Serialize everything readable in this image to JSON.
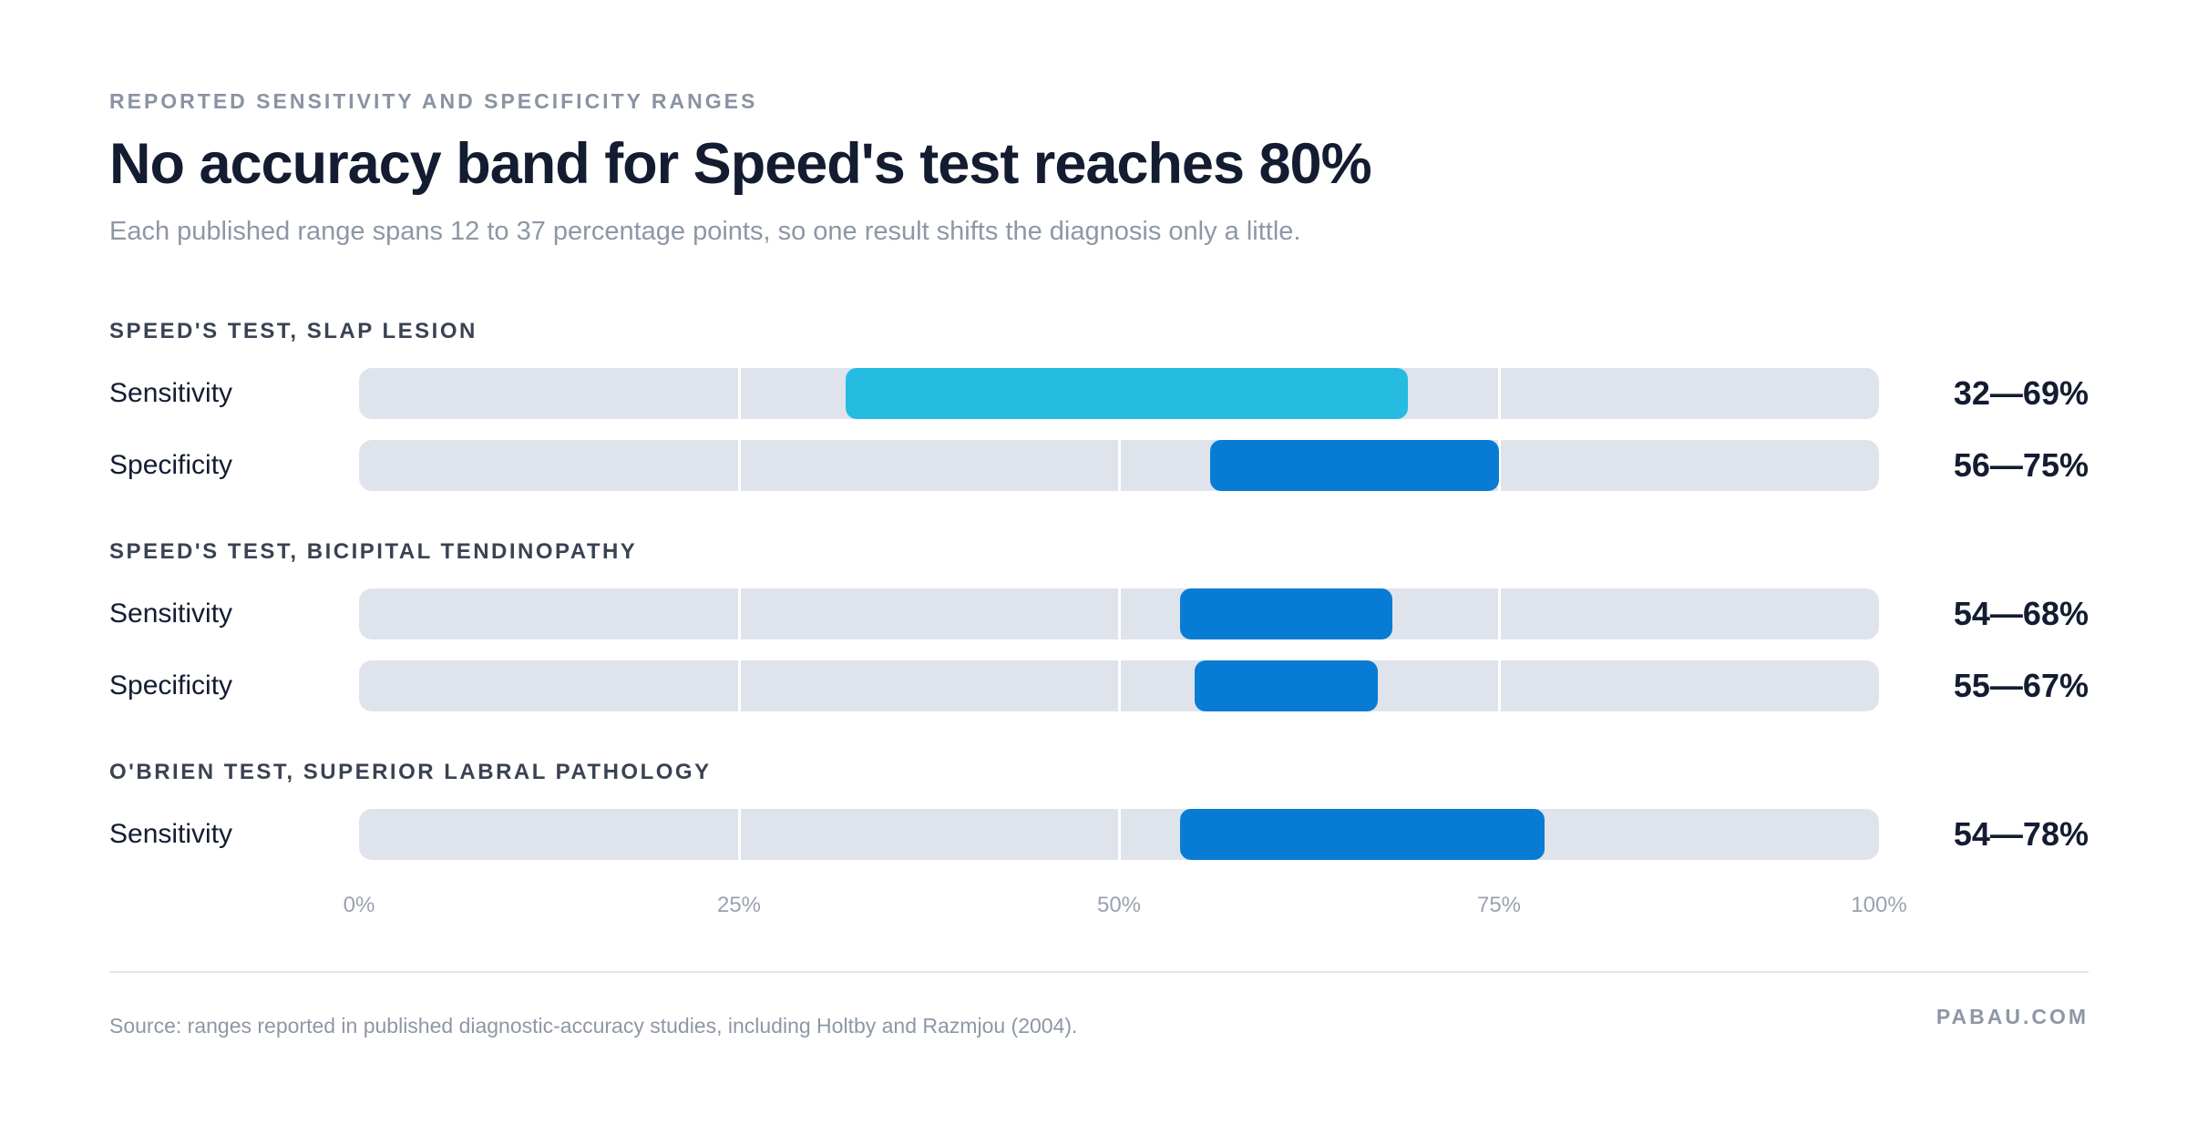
{
  "header": {
    "kicker": "REPORTED SENSITIVITY AND SPECIFICITY RANGES",
    "title": "No accuracy band for Speed's test reaches 80%",
    "subtitle": "Each published range spans 12 to 37 percentage points, so one result shifts the diagnosis only a little."
  },
  "footer": {
    "source": "Source: ranges reported in published diagnostic-accuracy studies, including Holtby and Razmjou (2004).",
    "brand": "PABAU.COM"
  },
  "chart_data": {
    "type": "bar",
    "orientation": "horizontal-range",
    "xlim": [
      0,
      100
    ],
    "ticks": [
      "0%",
      "25%",
      "50%",
      "75%",
      "100%"
    ],
    "tick_values": [
      0,
      25,
      50,
      75,
      100
    ],
    "grid": true,
    "colors": {
      "highlight": "#26bce1",
      "default": "#087cd4",
      "track": "#dfe3ec"
    },
    "groups": [
      {
        "label": "SPEED'S TEST, SLAP LESION",
        "rows": [
          {
            "label": "Sensitivity",
            "low": 32,
            "high": 69,
            "range_label": "32—69%",
            "highlight": true
          },
          {
            "label": "Specificity",
            "low": 56,
            "high": 75,
            "range_label": "56—75%",
            "highlight": false
          }
        ]
      },
      {
        "label": "SPEED'S TEST, BICIPITAL TENDINOPATHY",
        "rows": [
          {
            "label": "Sensitivity",
            "low": 54,
            "high": 68,
            "range_label": "54—68%",
            "highlight": false
          },
          {
            "label": "Specificity",
            "low": 55,
            "high": 67,
            "range_label": "55—67%",
            "highlight": false
          }
        ]
      },
      {
        "label": "O'BRIEN TEST, SUPERIOR LABRAL PATHOLOGY",
        "rows": [
          {
            "label": "Sensitivity",
            "low": 54,
            "high": 78,
            "range_label": "54—78%",
            "highlight": false
          }
        ]
      }
    ]
  }
}
